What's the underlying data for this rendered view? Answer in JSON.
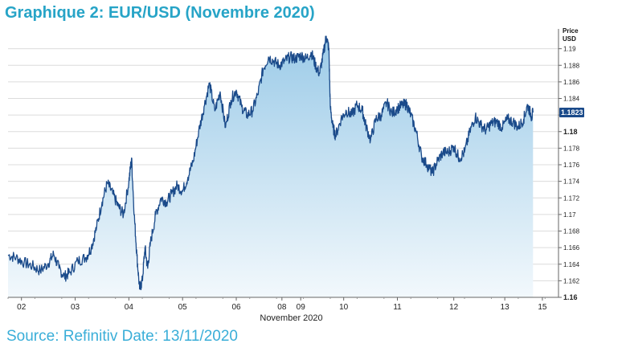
{
  "title": "Graphique 2: EUR/USD (Novembre 2020)",
  "source": "Source: Refinitiv Date: 13/11/2020",
  "chart_data": {
    "type": "area",
    "title": "Graphique 2: EUR/USD (Novembre 2020)",
    "xlabel": "November 2020",
    "ylabel": "Price USD",
    "ylim": [
      1.16,
      1.192
    ],
    "xlim": [
      0,
      19.55
    ],
    "y_ticks": [
      {
        "v": 1.16,
        "label": "1.16",
        "bold": true
      },
      {
        "v": 1.162,
        "label": "1.162"
      },
      {
        "v": 1.164,
        "label": "1.164"
      },
      {
        "v": 1.166,
        "label": "1.166"
      },
      {
        "v": 1.168,
        "label": "1.168"
      },
      {
        "v": 1.17,
        "label": "1.17"
      },
      {
        "v": 1.172,
        "label": "1.172"
      },
      {
        "v": 1.174,
        "label": "1.174"
      },
      {
        "v": 1.176,
        "label": "1.176"
      },
      {
        "v": 1.178,
        "label": "1.178"
      },
      {
        "v": 1.18,
        "label": "1.18",
        "bold": true
      },
      {
        "v": 1.182,
        "label": "1.182"
      },
      {
        "v": 1.184,
        "label": "1.184"
      },
      {
        "v": 1.186,
        "label": "1.186"
      },
      {
        "v": 1.188,
        "label": "1.188"
      },
      {
        "v": 1.19,
        "label": "1.19"
      }
    ],
    "x_ticks": [
      {
        "pos": 0.5,
        "label": "02"
      },
      {
        "pos": 2.5,
        "label": "03"
      },
      {
        "pos": 4.5,
        "label": "04"
      },
      {
        "pos": 6.5,
        "label": "05"
      },
      {
        "pos": 8.5,
        "label": "06"
      },
      {
        "pos": 10.2,
        "label": "08"
      },
      {
        "pos": 10.9,
        "label": "09"
      },
      {
        "pos": 12.5,
        "label": "10"
      },
      {
        "pos": 14.5,
        "label": "11"
      },
      {
        "pos": 16.6,
        "label": "12"
      },
      {
        "pos": 18.5,
        "label": "13"
      },
      {
        "pos": 19.9,
        "label": "15"
      }
    ],
    "last_value": "1.1823",
    "grid": true,
    "series": [
      {
        "color": "#1a4a8a",
        "fill_top": "#9ccbe8",
        "fill_bottom": "#f2f8fc",
        "points": [
          [
            0.0,
            1.1651
          ],
          [
            0.3,
            1.1648
          ],
          [
            0.6,
            1.1642
          ],
          [
            0.9,
            1.1638
          ],
          [
            1.2,
            1.1632
          ],
          [
            1.5,
            1.1641
          ],
          [
            1.7,
            1.1652
          ],
          [
            1.9,
            1.1635
          ],
          [
            2.1,
            1.1625
          ],
          [
            2.3,
            1.163
          ],
          [
            2.6,
            1.1644
          ],
          [
            2.9,
            1.1648
          ],
          [
            3.1,
            1.166
          ],
          [
            3.3,
            1.1685
          ],
          [
            3.5,
            1.1715
          ],
          [
            3.7,
            1.1738
          ],
          [
            3.9,
            1.1725
          ],
          [
            4.1,
            1.171
          ],
          [
            4.3,
            1.17
          ],
          [
            4.5,
            1.174
          ],
          [
            4.6,
            1.1768
          ],
          [
            4.7,
            1.17
          ],
          [
            4.8,
            1.165
          ],
          [
            4.9,
            1.161
          ],
          [
            5.0,
            1.162
          ],
          [
            5.1,
            1.166
          ],
          [
            5.2,
            1.1635
          ],
          [
            5.3,
            1.1665
          ],
          [
            5.5,
            1.17
          ],
          [
            5.7,
            1.172
          ],
          [
            5.9,
            1.1715
          ],
          [
            6.1,
            1.1725
          ],
          [
            6.3,
            1.1735
          ],
          [
            6.5,
            1.1728
          ],
          [
            6.7,
            1.1745
          ],
          [
            6.9,
            1.1765
          ],
          [
            7.1,
            1.18
          ],
          [
            7.3,
            1.183
          ],
          [
            7.5,
            1.1858
          ],
          [
            7.7,
            1.1825
          ],
          [
            7.9,
            1.1848
          ],
          [
            8.1,
            1.1805
          ],
          [
            8.3,
            1.1838
          ],
          [
            8.5,
            1.185
          ],
          [
            8.7,
            1.183
          ],
          [
            8.9,
            1.182
          ],
          [
            9.1,
            1.1825
          ],
          [
            9.3,
            1.1845
          ],
          [
            9.5,
            1.1875
          ],
          [
            9.7,
            1.189
          ],
          [
            9.9,
            1.1885
          ],
          [
            10.1,
            1.188
          ],
          [
            10.3,
            1.1885
          ],
          [
            10.5,
            1.189
          ],
          [
            10.7,
            1.1888
          ],
          [
            10.9,
            1.1892
          ],
          [
            11.1,
            1.1888
          ],
          [
            11.3,
            1.1895
          ],
          [
            11.45,
            1.188
          ],
          [
            11.6,
            1.187
          ],
          [
            11.75,
            1.1895
          ],
          [
            11.85,
            1.1915
          ],
          [
            11.95,
            1.19
          ],
          [
            12.0,
            1.183
          ],
          [
            12.1,
            1.1805
          ],
          [
            12.2,
            1.1795
          ],
          [
            12.4,
            1.1815
          ],
          [
            12.6,
            1.1825
          ],
          [
            12.8,
            1.182
          ],
          [
            13.0,
            1.1832
          ],
          [
            13.2,
            1.1825
          ],
          [
            13.3,
            1.181
          ],
          [
            13.5,
            1.179
          ],
          [
            13.7,
            1.1815
          ],
          [
            13.9,
            1.182
          ],
          [
            14.1,
            1.1835
          ],
          [
            14.3,
            1.1822
          ],
          [
            14.5,
            1.1828
          ],
          [
            14.7,
            1.1832
          ],
          [
            14.85,
            1.1833
          ],
          [
            15.0,
            1.182
          ],
          [
            15.2,
            1.18
          ],
          [
            15.4,
            1.177
          ],
          [
            15.6,
            1.176
          ],
          [
            15.8,
            1.175
          ],
          [
            16.0,
            1.1765
          ],
          [
            16.2,
            1.1775
          ],
          [
            16.4,
            1.1775
          ],
          [
            16.6,
            1.1782
          ],
          [
            16.8,
            1.1768
          ],
          [
            17.0,
            1.1775
          ],
          [
            17.2,
            1.18
          ],
          [
            17.4,
            1.1818
          ],
          [
            17.6,
            1.1808
          ],
          [
            17.8,
            1.1802
          ],
          [
            18.0,
            1.181
          ],
          [
            18.2,
            1.1812
          ],
          [
            18.4,
            1.1805
          ],
          [
            18.6,
            1.1815
          ],
          [
            18.8,
            1.1812
          ],
          [
            19.0,
            1.1805
          ],
          [
            19.2,
            1.1815
          ],
          [
            19.35,
            1.1832
          ],
          [
            19.5,
            1.1818
          ],
          [
            19.55,
            1.1823
          ]
        ]
      }
    ]
  }
}
